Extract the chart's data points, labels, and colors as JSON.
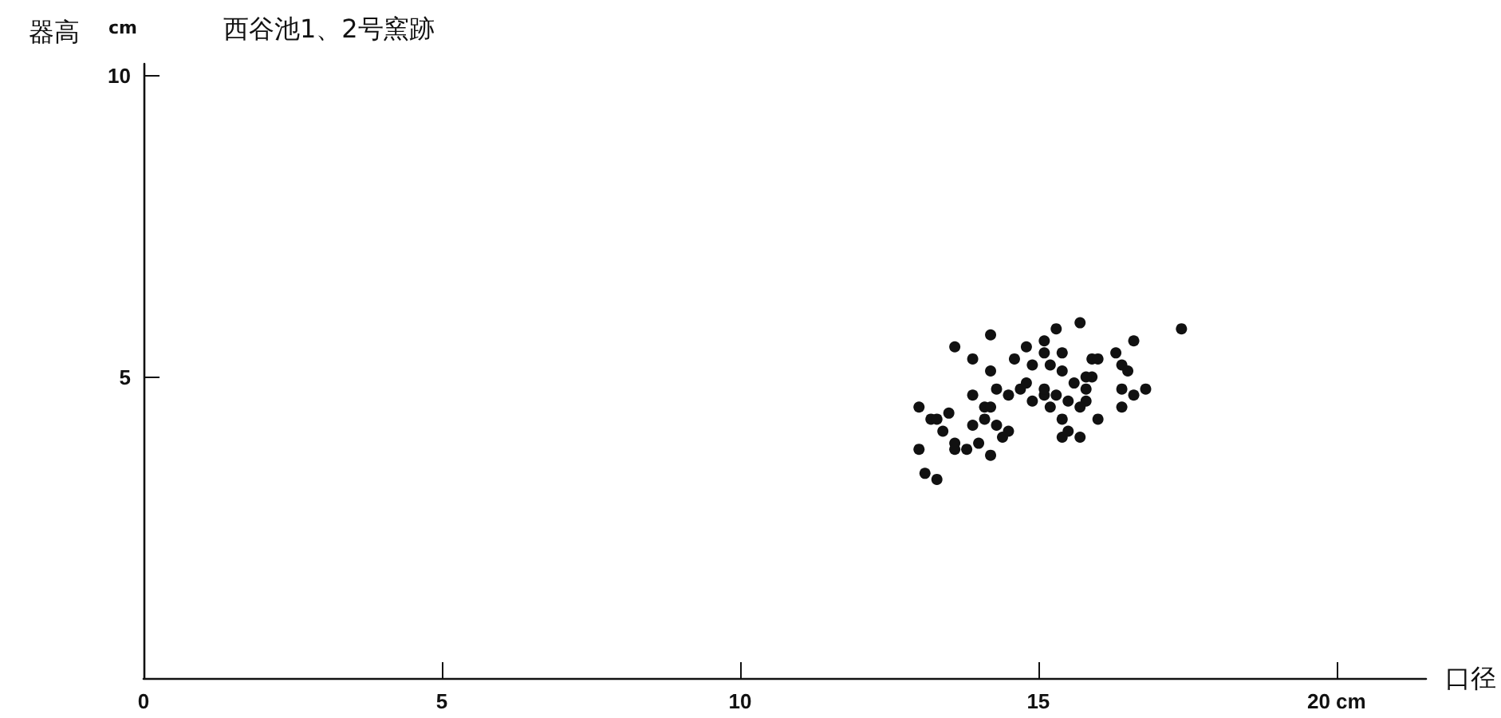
{
  "chart_data": {
    "type": "scatter",
    "title": "西谷池1、2号窯跡",
    "xlabel": "口径",
    "ylabel": "器高",
    "annotations": [
      "cm"
    ],
    "xlim": [
      0,
      21.5
    ],
    "ylim": [
      0,
      10.2
    ],
    "xticks": [
      0,
      5,
      10,
      15,
      {
        "value": 20,
        "label": "20 cm"
      }
    ],
    "yticks": [
      {
        "value": 0,
        "label": null
      },
      5,
      10
    ],
    "grid": false,
    "marker": "circle",
    "series": [
      {
        "color": "#111111",
        "x": [
          14.2,
          13.6,
          13.9,
          14.2,
          14.6,
          14.8,
          15.1,
          15.1,
          14.9,
          13.0,
          13.2,
          13.3,
          13.5,
          13.9,
          14.3,
          14.5,
          14.7,
          14.8,
          14.9,
          15.1,
          14.1,
          14.2,
          13.9,
          14.1,
          14.3,
          14.5,
          14.4,
          13.4,
          13.6,
          13.6,
          13.8,
          14.0,
          14.2,
          13.0,
          13.1,
          13.3,
          15.7,
          15.3,
          17.4,
          16.6,
          15.4,
          15.9,
          16.0,
          16.3,
          16.4,
          16.5,
          15.2,
          15.4,
          15.9,
          15.8,
          15.6,
          15.8,
          15.8,
          15.5,
          15.7,
          15.1,
          15.3,
          16.4,
          16.6,
          16.8,
          16.4,
          15.2,
          15.4,
          15.5,
          15.4,
          15.7,
          16.0
        ],
        "values": [
          5.7,
          5.5,
          5.3,
          5.1,
          5.3,
          5.5,
          5.6,
          5.4,
          5.2,
          4.5,
          4.3,
          4.3,
          4.4,
          4.7,
          4.8,
          4.7,
          4.8,
          4.9,
          4.6,
          4.7,
          4.5,
          4.5,
          4.2,
          4.3,
          4.2,
          4.1,
          4.0,
          4.1,
          3.9,
          3.8,
          3.8,
          3.9,
          3.7,
          3.8,
          3.4,
          3.3,
          5.9,
          5.8,
          5.8,
          5.6,
          5.4,
          5.3,
          5.3,
          5.4,
          5.2,
          5.1,
          5.2,
          5.1,
          5.0,
          5.0,
          4.9,
          4.8,
          4.6,
          4.6,
          4.5,
          4.8,
          4.7,
          4.8,
          4.7,
          4.8,
          4.5,
          4.5,
          4.3,
          4.1,
          4.0,
          4.0,
          4.3
        ]
      }
    ]
  }
}
